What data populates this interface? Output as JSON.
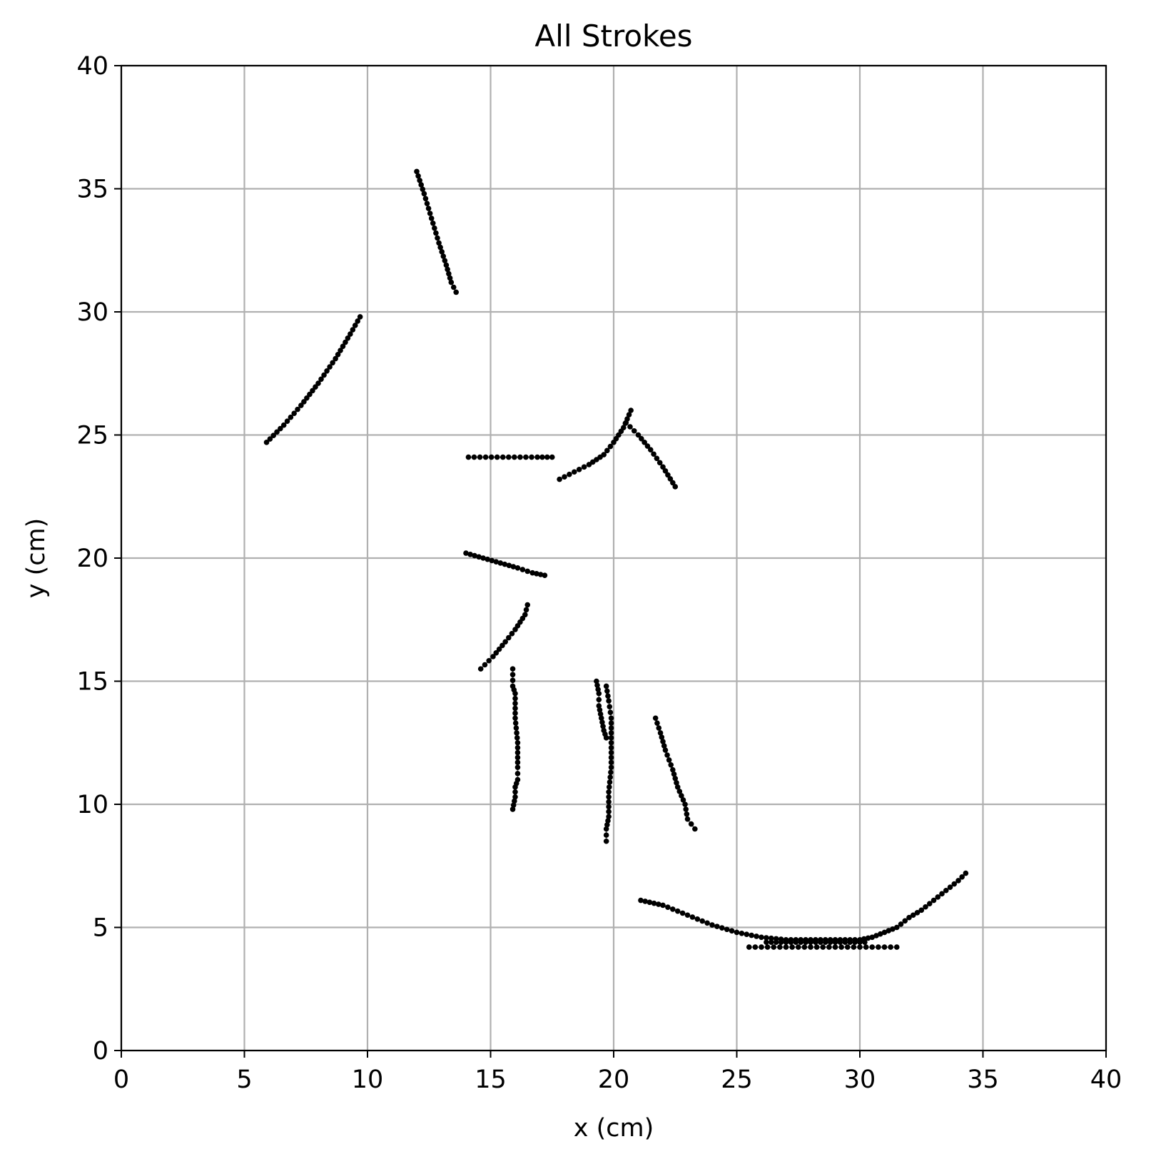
{
  "chart_data": {
    "type": "scatter",
    "title": "All Strokes",
    "xlabel": "x (cm)",
    "ylabel": "y (cm)",
    "xlim": [
      0,
      40
    ],
    "ylim": [
      0,
      40
    ],
    "xticks": [
      0,
      5,
      10,
      15,
      20,
      25,
      30,
      35,
      40
    ],
    "yticks": [
      0,
      5,
      10,
      15,
      20,
      25,
      30,
      35,
      40
    ],
    "grid": true,
    "marker_color": "#000000",
    "strokes": [
      {
        "points": [
          [
            12.0,
            35.7
          ],
          [
            12.3,
            34.8
          ],
          [
            12.6,
            33.8
          ],
          [
            12.9,
            32.8
          ],
          [
            13.2,
            31.9
          ],
          [
            13.4,
            31.2
          ],
          [
            13.6,
            30.8
          ]
        ]
      },
      {
        "points": [
          [
            5.9,
            24.7
          ],
          [
            6.6,
            25.4
          ],
          [
            7.3,
            26.2
          ],
          [
            8.0,
            27.1
          ],
          [
            8.7,
            28.1
          ],
          [
            9.3,
            29.1
          ],
          [
            9.7,
            29.8
          ]
        ]
      },
      {
        "points": [
          [
            14.1,
            24.1
          ],
          [
            14.8,
            24.1
          ],
          [
            15.5,
            24.1
          ],
          [
            16.2,
            24.1
          ],
          [
            16.9,
            24.1
          ],
          [
            17.5,
            24.1
          ]
        ]
      },
      {
        "points": [
          [
            17.8,
            23.2
          ],
          [
            18.4,
            23.5
          ],
          [
            19.0,
            23.8
          ],
          [
            19.6,
            24.2
          ],
          [
            20.0,
            24.7
          ],
          [
            20.4,
            25.3
          ],
          [
            20.7,
            26.0
          ]
        ]
      },
      {
        "points": [
          [
            20.5,
            25.5
          ],
          [
            21.0,
            25.0
          ],
          [
            21.5,
            24.4
          ],
          [
            22.0,
            23.7
          ],
          [
            22.5,
            22.9
          ]
        ]
      },
      {
        "points": [
          [
            14.0,
            20.2
          ],
          [
            14.7,
            20.0
          ],
          [
            15.4,
            19.8
          ],
          [
            16.1,
            19.6
          ],
          [
            16.7,
            19.4
          ],
          [
            17.2,
            19.3
          ]
        ]
      },
      {
        "points": [
          [
            14.6,
            15.5
          ],
          [
            15.1,
            16.0
          ],
          [
            15.6,
            16.6
          ],
          [
            16.0,
            17.1
          ],
          [
            16.4,
            17.7
          ],
          [
            16.5,
            18.1
          ]
        ]
      },
      {
        "points": [
          [
            15.9,
            15.5
          ],
          [
            15.9,
            14.8
          ],
          [
            16.0,
            14.5
          ],
          [
            16.0,
            13.5
          ],
          [
            16.1,
            12.5
          ],
          [
            16.1,
            11.5
          ],
          [
            16.1,
            11.0
          ],
          [
            16.0,
            10.7
          ],
          [
            16.0,
            10.3
          ],
          [
            15.9,
            9.8
          ]
        ]
      },
      {
        "points": [
          [
            19.3,
            15.0
          ],
          [
            19.4,
            14.5
          ],
          [
            19.4,
            14.0
          ],
          [
            19.5,
            13.5
          ],
          [
            19.6,
            13.0
          ],
          [
            19.7,
            12.7
          ]
        ]
      },
      {
        "points": [
          [
            19.7,
            14.8
          ],
          [
            19.8,
            14.2
          ],
          [
            19.9,
            13.5
          ],
          [
            19.9,
            12.5
          ],
          [
            19.9,
            11.5
          ],
          [
            19.8,
            10.5
          ],
          [
            19.8,
            9.5
          ],
          [
            19.7,
            9.0
          ],
          [
            19.7,
            8.5
          ]
        ]
      },
      {
        "points": [
          [
            21.7,
            13.5
          ],
          [
            21.9,
            12.9
          ],
          [
            22.1,
            12.2
          ],
          [
            22.4,
            11.4
          ],
          [
            22.6,
            10.7
          ],
          [
            22.9,
            10.0
          ],
          [
            23.0,
            9.4
          ],
          [
            23.3,
            9.0
          ]
        ]
      },
      {
        "points": [
          [
            21.1,
            6.1
          ],
          [
            22.0,
            5.9
          ],
          [
            23.0,
            5.5
          ],
          [
            24.0,
            5.1
          ],
          [
            25.0,
            4.8
          ],
          [
            26.0,
            4.6
          ],
          [
            27.0,
            4.5
          ],
          [
            28.0,
            4.5
          ],
          [
            29.0,
            4.5
          ],
          [
            30.0,
            4.5
          ],
          [
            30.5,
            4.6
          ],
          [
            31.0,
            4.8
          ],
          [
            31.5,
            5.0
          ],
          [
            32.0,
            5.4
          ],
          [
            32.5,
            5.7
          ],
          [
            33.0,
            6.1
          ],
          [
            33.5,
            6.5
          ],
          [
            34.0,
            6.9
          ],
          [
            34.3,
            7.2
          ]
        ]
      },
      {
        "points": [
          [
            25.5,
            4.2
          ],
          [
            26.0,
            4.2
          ],
          [
            26.5,
            4.2
          ],
          [
            27.0,
            4.2
          ],
          [
            27.5,
            4.2
          ],
          [
            28.0,
            4.2
          ],
          [
            28.5,
            4.2
          ],
          [
            29.0,
            4.2
          ],
          [
            29.5,
            4.2
          ],
          [
            30.0,
            4.2
          ],
          [
            30.5,
            4.2
          ],
          [
            31.0,
            4.2
          ],
          [
            31.5,
            4.2
          ]
        ]
      },
      {
        "points": [
          [
            26.2,
            4.4
          ],
          [
            27.0,
            4.4
          ],
          [
            27.8,
            4.4
          ],
          [
            28.6,
            4.4
          ],
          [
            29.4,
            4.4
          ],
          [
            30.2,
            4.4
          ]
        ]
      }
    ]
  }
}
